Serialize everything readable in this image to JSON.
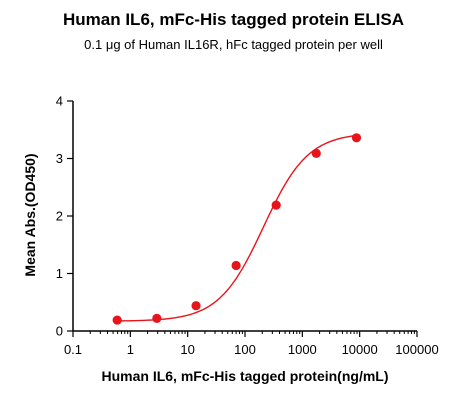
{
  "chart_data": {
    "type": "scatter",
    "title": "Human IL6, mFc-His tagged protein ELISA",
    "subtitle": "0.1 μg of Human IL16R, hFc tagged protein per well",
    "xlabel": "Human IL6, mFc-His tagged protein(ng/mL)",
    "ylabel": "Mean Abs.(OD450)",
    "x_scale": "log",
    "xlim": [
      0.1,
      100000
    ],
    "ylim": [
      0,
      4
    ],
    "x_ticks": [
      0.1,
      1,
      10,
      100,
      1000,
      10000,
      100000
    ],
    "x_tick_labels": [
      "0.1",
      "1",
      "10",
      "100",
      "1000",
      "10000",
      "100000"
    ],
    "y_ticks": [
      0,
      1,
      2,
      3,
      4
    ],
    "y_tick_labels": [
      "0",
      "1",
      "2",
      "3",
      "4"
    ],
    "series": [
      {
        "color": "#e8141c",
        "points": [
          {
            "x": 0.59,
            "y": 0.19
          },
          {
            "x": 2.9,
            "y": 0.22
          },
          {
            "x": 14,
            "y": 0.44
          },
          {
            "x": 70,
            "y": 1.14
          },
          {
            "x": 350,
            "y": 2.19
          },
          {
            "x": 1750,
            "y": 3.09
          },
          {
            "x": 8800,
            "y": 3.36
          }
        ],
        "fit": {
          "model": "4PL",
          "bottom": 0.17,
          "top": 3.45,
          "ec50": 210,
          "hill": 1.12
        }
      }
    ]
  }
}
